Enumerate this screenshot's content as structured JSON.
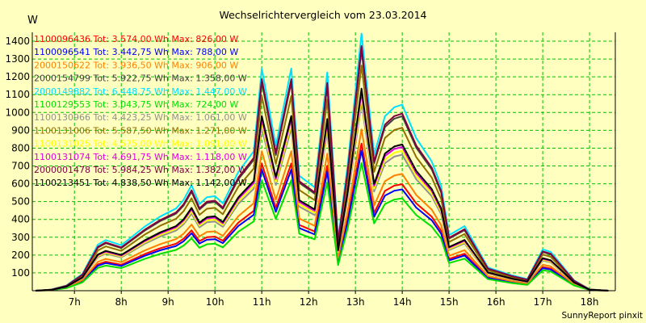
{
  "chart_data": {
    "type": "line",
    "title": "Wechselrichtervergleich vom 23.03.2014",
    "ylabel": "W",
    "xlabel": "",
    "footer": "SunnyReport pinxit",
    "ylim": [
      0,
      1450
    ],
    "y_ticks": [
      100,
      200,
      300,
      400,
      500,
      600,
      700,
      800,
      900,
      1000,
      1100,
      1200,
      1300,
      1400
    ],
    "xlim": [
      6.1,
      18.55
    ],
    "x_ticks": [
      {
        "value": 7,
        "label": "7h"
      },
      {
        "value": 8,
        "label": "8h"
      },
      {
        "value": 9,
        "label": "9h"
      },
      {
        "value": 10,
        "label": "10h"
      },
      {
        "value": 11,
        "label": "11h"
      },
      {
        "value": 12,
        "label": "12h"
      },
      {
        "value": 13,
        "label": "13h"
      },
      {
        "value": 14,
        "label": "14h"
      },
      {
        "value": 15,
        "label": "15h"
      },
      {
        "value": 16,
        "label": "16h"
      },
      {
        "value": 17,
        "label": "17h"
      },
      {
        "value": 18,
        "label": "18h"
      }
    ],
    "grid": true,
    "legend_position": "top-left",
    "x": [
      6.17,
      6.5,
      6.83,
      7.17,
      7.5,
      7.67,
      8.0,
      8.17,
      8.5,
      8.83,
      9.17,
      9.33,
      9.5,
      9.67,
      9.83,
      10.0,
      10.17,
      10.5,
      10.83,
      11.0,
      11.3,
      11.63,
      11.8,
      12.13,
      12.4,
      12.63,
      12.83,
      13.13,
      13.4,
      13.63,
      13.83,
      14.0,
      14.3,
      14.63,
      14.83,
      15.0,
      15.33,
      15.83,
      16.33,
      16.67,
      17.0,
      17.17,
      17.4,
      17.67,
      18.0,
      18.4
    ],
    "base_profile": [
      0,
      4,
      20,
      65,
      178,
      196,
      176,
      200,
      248,
      287,
      318,
      351,
      408,
      335,
      362,
      366,
      338,
      460,
      540,
      860,
      560,
      860,
      445,
      400,
      845,
      200,
      480,
      995,
      525,
      675,
      710,
      720,
      590,
      500,
      405,
      215,
      250,
      90,
      60,
      45,
      160,
      150,
      100,
      40,
      5,
      0
    ],
    "series": [
      {
        "name": "1100096436",
        "label": "1100096436 Tot: 3.574,00 Wh Max: 826,00 W",
        "color": "#ff0000",
        "scale": 0.83
      },
      {
        "name": "1100096541",
        "label": "1100096541 Tot: 3.442,75 Wh Max: 788,00 W",
        "color": "#0000ff",
        "scale": 0.79
      },
      {
        "name": "2000150622",
        "label": "2000150622 Tot: 3.936,50 Wh Max: 906,00 W",
        "color": "#ff8000",
        "scale": 0.91
      },
      {
        "name": "2000154799",
        "label": "2000154799 Tot: 5.922,75 Wh Max: 1.358,00 W",
        "color": "#404040",
        "scale": 1.36
      },
      {
        "name": "2000149882",
        "label": "2000149882 Tot: 6.448,75 Wh Max: 1.447,00 W",
        "color": "#00e0ff",
        "scale": 1.45
      },
      {
        "name": "1100129553",
        "label": "1100129553 Tot: 3.043,75 Wh Max: 724,00 W",
        "color": "#00e000",
        "scale": 0.72
      },
      {
        "name": "1100130966",
        "label": "1100130966 Tot: 4.423,25 Wh Max: 1.061,00 W",
        "color": "#909090",
        "scale": 1.06
      },
      {
        "name": "1100131006",
        "label": "1100131006 Tot: 5.587,50 Wh Max: 1.271,00 W",
        "color": "#907000",
        "scale": 1.27
      },
      {
        "name": "1100131025",
        "label": "1100131025 Tot: 4.575,00 Wh Max: 1.091,00 W",
        "color": "#ffff00",
        "scale": 1.09
      },
      {
        "name": "1100131074",
        "label": "1100131074 Tot: 4.691,75 Wh Max: 1.118,00 W",
        "color": "#e000e0",
        "scale": 1.12
      },
      {
        "name": "2000001478",
        "label": "2000001478 Tot: 5.984,25 Wh Max: 1.382,00 W",
        "color": "#800040",
        "scale": 1.38
      },
      {
        "name": "1100213451",
        "label": "1100213451 Tot: 4.838,50 Wh Max: 1.142,00 W",
        "color": "#000000",
        "scale": 1.14
      }
    ]
  }
}
